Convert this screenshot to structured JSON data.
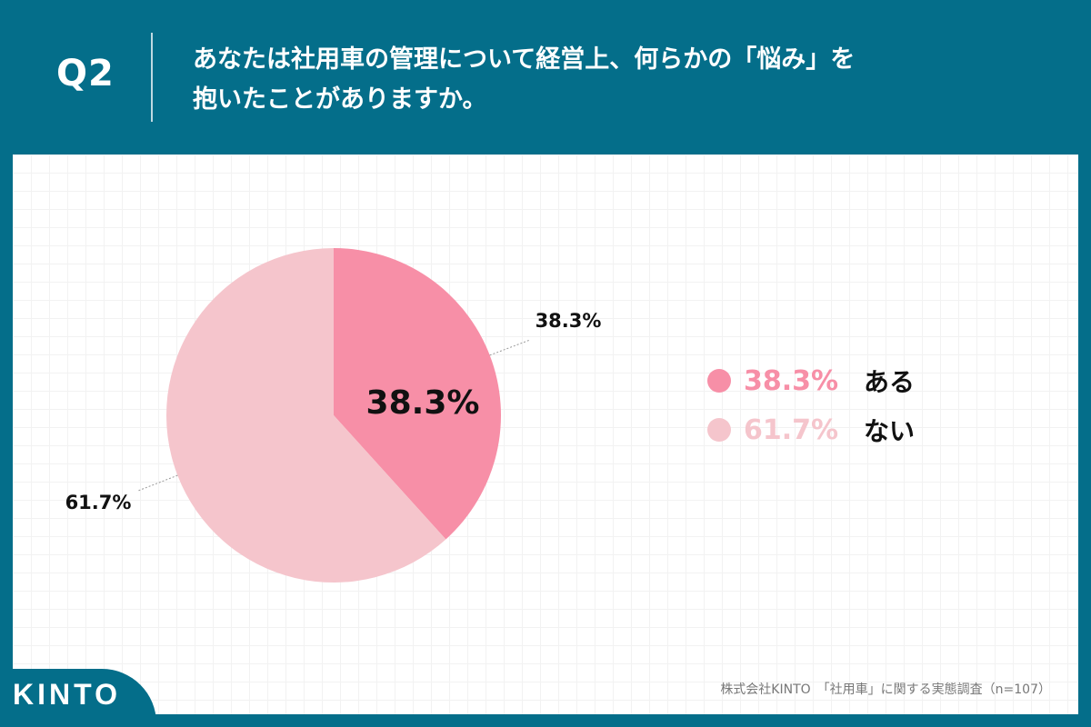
{
  "header": {
    "q_label": "Q2",
    "question_line1": "あなたは社用車の管理について経営上、何らかの「悩み」を",
    "question_line2": "抱いたことがありますか。"
  },
  "chart_data": {
    "type": "pie",
    "slices": [
      {
        "name": "ある",
        "value": 38.3,
        "label": "38.3%",
        "color": "#F78FA7"
      },
      {
        "name": "ない",
        "value": 61.7,
        "label": "61.7%",
        "color": "#F5C5CC"
      }
    ],
    "start_angle": "12 o'clock",
    "direction": "clockwise",
    "inner_label": "38.3%",
    "legend_placement": "right"
  },
  "legend": [
    {
      "pct": "38.3%",
      "name": "ある",
      "color": "#F78FA7"
    },
    {
      "pct": "61.7%",
      "name": "ない",
      "color": "#F5C5CC"
    }
  ],
  "footer": {
    "logo": "KINTO",
    "source": "株式会社KINTO　「社用車」に関する実態調査（n=107）"
  },
  "colors": {
    "background": "#046E8A",
    "panel": "#FFFFFF"
  }
}
